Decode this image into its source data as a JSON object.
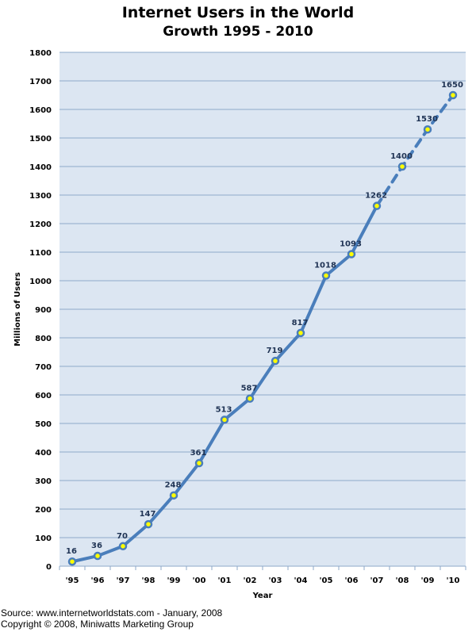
{
  "chart_data": {
    "type": "line",
    "title": "Internet Users in the World",
    "subtitle": "Growth 1995 - 2010",
    "xlabel": "Year",
    "ylabel": "Millions of Users",
    "categories": [
      "'95",
      "'96",
      "'97",
      "'98",
      "'99",
      "'00",
      "'01",
      "'02",
      "'03",
      "'04",
      "'05",
      "'06",
      "'07",
      "'08",
      "'09",
      "'10"
    ],
    "values": [
      16,
      36,
      70,
      147,
      248,
      361,
      513,
      587,
      719,
      817,
      1018,
      1093,
      1262,
      1400,
      1530,
      1650
    ],
    "data_labels": [
      "16",
      "36",
      "70",
      "147",
      "248",
      "361",
      "513",
      "587",
      "719",
      "817",
      "1018",
      "1093",
      "1262",
      "1400",
      "1530",
      "1650"
    ],
    "projected_from": "'07",
    "ylim": [
      0,
      1800
    ],
    "yticks": [
      0,
      100,
      200,
      300,
      400,
      500,
      600,
      700,
      800,
      900,
      1000,
      1100,
      1200,
      1300,
      1400,
      1500,
      1600,
      1700,
      1800
    ],
    "grid": true,
    "legend": "none",
    "colors": {
      "line": "#4a7ebb",
      "marker_fill": "#ffff00",
      "plot_bg": "#dce6f2",
      "grid": "#8ea9c9"
    }
  },
  "footer": {
    "source": "Source: www.internetworldstats.com - January, 2008",
    "copyright": "Copyright © 2008, Miniwatts Marketing Group"
  }
}
